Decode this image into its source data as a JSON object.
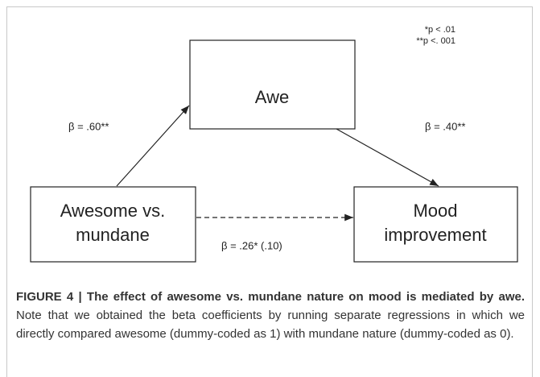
{
  "notes": [
    "*p < .01",
    "**p <. 001"
  ],
  "nodes": [
    {
      "lines": [
        "Awe"
      ]
    },
    {
      "lines": [
        "Awesome vs.",
        "mundane"
      ]
    },
    {
      "lines": [
        "Mood",
        "improvement"
      ]
    }
  ],
  "edges": [
    {
      "label": "β = .60**"
    },
    {
      "label": "β = .40**"
    },
    {
      "label": "β = .26* (.10)"
    }
  ],
  "caption": {
    "title": "FIGURE 4 | The effect of awesome vs. mundane nature on mood is mediated by awe.",
    "text": "Note that we obtained the beta coefficients by running separate regressions in which we directly compared awesome (dummy-coded as 1) with mundane nature (dummy-coded as 0)."
  }
}
